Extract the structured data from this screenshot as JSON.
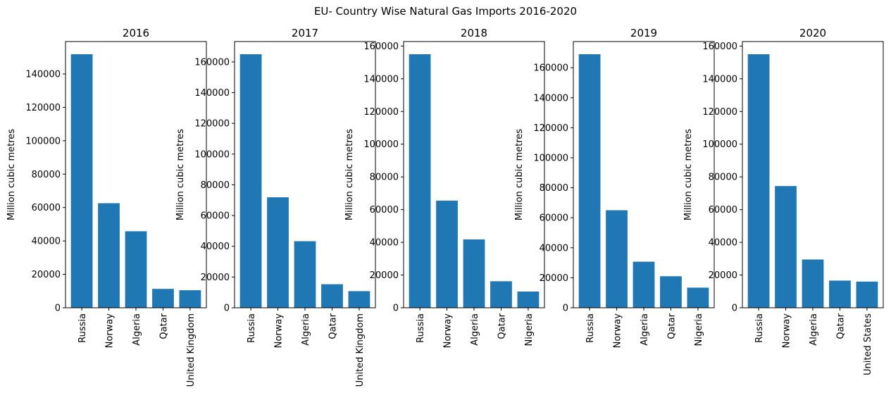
{
  "figure": {
    "suptitle": "EU- Country Wise Natural Gas Imports 2016-2020",
    "bar_color": "#1f77b4"
  },
  "chart_data": [
    {
      "type": "bar",
      "title": "2016",
      "ylabel": "Million cubic metres",
      "xlabel": "",
      "categories": [
        "Russia",
        "Norway",
        "Algeria",
        "Qatar",
        "United Kingdom"
      ],
      "values": [
        151800,
        62600,
        45800,
        11300,
        10500
      ],
      "ylim": [
        0,
        159390
      ],
      "yticks": [
        0,
        20000,
        40000,
        60000,
        80000,
        100000,
        120000,
        140000
      ]
    },
    {
      "type": "bar",
      "title": "2017",
      "ylabel": "Million cubic metres",
      "xlabel": "",
      "categories": [
        "Russia",
        "Norway",
        "Algeria",
        "Qatar",
        "United Kingdom"
      ],
      "values": [
        165000,
        71900,
        43300,
        15300,
        10800
      ],
      "ylim": [
        0,
        173250
      ],
      "yticks": [
        0,
        20000,
        40000,
        60000,
        80000,
        100000,
        120000,
        140000,
        160000
      ]
    },
    {
      "type": "bar",
      "title": "2018",
      "ylabel": "Million cubic metres",
      "xlabel": "",
      "categories": [
        "Russia",
        "Norway",
        "Algeria",
        "Qatar",
        "Nigeria"
      ],
      "values": [
        155000,
        65500,
        41800,
        16200,
        9900
      ],
      "ylim": [
        0,
        162750
      ],
      "yticks": [
        0,
        20000,
        40000,
        60000,
        80000,
        100000,
        120000,
        140000,
        160000
      ]
    },
    {
      "type": "bar",
      "title": "2019",
      "ylabel": "Million cubic metres",
      "xlabel": "",
      "categories": [
        "Russia",
        "Norway",
        "Algeria",
        "Qatar",
        "Nigeria"
      ],
      "values": [
        169000,
        65000,
        30700,
        21000,
        13400
      ],
      "ylim": [
        0,
        177450
      ],
      "yticks": [
        0,
        20000,
        40000,
        60000,
        80000,
        100000,
        120000,
        140000,
        160000
      ]
    },
    {
      "type": "bar",
      "title": "2020",
      "ylabel": "Million cubic metres",
      "xlabel": "",
      "categories": [
        "Russia",
        "Norway",
        "Algeria",
        "Qatar",
        "United States"
      ],
      "values": [
        155000,
        74400,
        29500,
        16600,
        16000
      ],
      "ylim": [
        0,
        162750
      ],
      "yticks": [
        0,
        20000,
        40000,
        60000,
        80000,
        100000,
        120000,
        140000,
        160000
      ]
    }
  ]
}
